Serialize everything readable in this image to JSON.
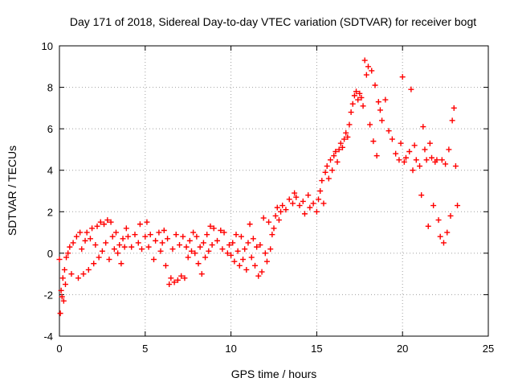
{
  "chart_data": {
    "type": "scatter",
    "title": "Day 171 of 2018, Sidereal Day-to-day VTEC variation (SDTVAR) for receiver bogt",
    "xlabel": "GPS time / hours",
    "ylabel": "SDTVAR / TECUs",
    "xlim": [
      0,
      25
    ],
    "ylim": [
      -4,
      10
    ],
    "xticks": [
      "0",
      "5",
      "10",
      "15",
      "20",
      "25"
    ],
    "yticks": [
      "-4",
      "-2",
      "0",
      "2",
      "4",
      "6",
      "8",
      "10"
    ],
    "grid": true,
    "marker": "+",
    "color": "#ff0000",
    "series": [
      {
        "name": "SDTVAR",
        "points": [
          [
            0.0,
            -0.3
          ],
          [
            0.05,
            -2.9
          ],
          [
            0.1,
            -1.8
          ],
          [
            0.15,
            -2.1
          ],
          [
            0.2,
            -1.2
          ],
          [
            0.25,
            -2.3
          ],
          [
            0.3,
            -0.8
          ],
          [
            0.35,
            -1.5
          ],
          [
            0.4,
            -0.2
          ],
          [
            0.5,
            0.0
          ],
          [
            0.6,
            0.3
          ],
          [
            0.7,
            -1.0
          ],
          [
            0.8,
            0.5
          ],
          [
            1.0,
            0.8
          ],
          [
            1.1,
            -1.2
          ],
          [
            1.2,
            1.0
          ],
          [
            1.3,
            0.2
          ],
          [
            1.4,
            -1.0
          ],
          [
            1.5,
            0.6
          ],
          [
            1.6,
            1.0
          ],
          [
            1.7,
            -0.8
          ],
          [
            1.8,
            0.7
          ],
          [
            1.9,
            1.2
          ],
          [
            2.0,
            -0.5
          ],
          [
            2.1,
            0.4
          ],
          [
            2.2,
            1.3
          ],
          [
            2.3,
            -0.2
          ],
          [
            2.4,
            1.5
          ],
          [
            2.5,
            0.1
          ],
          [
            2.6,
            1.4
          ],
          [
            2.7,
            0.5
          ],
          [
            2.8,
            1.6
          ],
          [
            2.9,
            -0.3
          ],
          [
            3.0,
            1.5
          ],
          [
            3.1,
            0.8
          ],
          [
            3.2,
            0.2
          ],
          [
            3.3,
            1.0
          ],
          [
            3.4,
            0.0
          ],
          [
            3.5,
            0.4
          ],
          [
            3.6,
            -0.5
          ],
          [
            3.7,
            0.7
          ],
          [
            3.8,
            0.3
          ],
          [
            3.9,
            1.2
          ],
          [
            4.0,
            0.8
          ],
          [
            4.2,
            0.3
          ],
          [
            4.4,
            0.9
          ],
          [
            4.6,
            0.5
          ],
          [
            4.7,
            1.4
          ],
          [
            4.8,
            0.2
          ],
          [
            5.0,
            0.8
          ],
          [
            5.1,
            1.5
          ],
          [
            5.2,
            0.3
          ],
          [
            5.3,
            0.9
          ],
          [
            5.5,
            -0.3
          ],
          [
            5.6,
            0.6
          ],
          [
            5.8,
            1.0
          ],
          [
            5.9,
            0.1
          ],
          [
            6.0,
            0.5
          ],
          [
            6.1,
            1.1
          ],
          [
            6.2,
            -0.6
          ],
          [
            6.3,
            0.7
          ],
          [
            6.4,
            -1.5
          ],
          [
            6.5,
            -1.2
          ],
          [
            6.6,
            0.2
          ],
          [
            6.7,
            -1.4
          ],
          [
            6.8,
            0.9
          ],
          [
            6.9,
            -1.3
          ],
          [
            7.0,
            0.4
          ],
          [
            7.1,
            -1.1
          ],
          [
            7.2,
            0.8
          ],
          [
            7.3,
            -1.2
          ],
          [
            7.4,
            0.3
          ],
          [
            7.5,
            -0.2
          ],
          [
            7.6,
            0.6
          ],
          [
            7.7,
            0.1
          ],
          [
            7.8,
            1.0
          ],
          [
            7.9,
            0.0
          ],
          [
            8.0,
            0.8
          ],
          [
            8.1,
            -0.5
          ],
          [
            8.2,
            0.3
          ],
          [
            8.3,
            -1.0
          ],
          [
            8.4,
            0.5
          ],
          [
            8.5,
            -0.2
          ],
          [
            8.6,
            0.9
          ],
          [
            8.7,
            0.1
          ],
          [
            8.8,
            1.3
          ],
          [
            8.9,
            0.4
          ],
          [
            9.0,
            1.2
          ],
          [
            9.2,
            0.6
          ],
          [
            9.4,
            1.1
          ],
          [
            9.5,
            0.2
          ],
          [
            9.6,
            1.0
          ],
          [
            9.8,
            0.0
          ],
          [
            9.9,
            0.4
          ],
          [
            10.0,
            -0.1
          ],
          [
            10.1,
            0.5
          ],
          [
            10.2,
            -0.4
          ],
          [
            10.3,
            0.9
          ],
          [
            10.4,
            0.1
          ],
          [
            10.5,
            -0.6
          ],
          [
            10.6,
            0.8
          ],
          [
            10.7,
            -0.3
          ],
          [
            10.8,
            0.2
          ],
          [
            10.9,
            -0.8
          ],
          [
            11.0,
            0.5
          ],
          [
            11.1,
            1.4
          ],
          [
            11.2,
            -0.2
          ],
          [
            11.3,
            0.7
          ],
          [
            11.4,
            -0.6
          ],
          [
            11.5,
            0.3
          ],
          [
            11.6,
            -1.1
          ],
          [
            11.7,
            0.4
          ],
          [
            11.8,
            -0.9
          ],
          [
            11.9,
            1.7
          ],
          [
            12.0,
            0.0
          ],
          [
            12.1,
            -0.4
          ],
          [
            12.2,
            1.5
          ],
          [
            12.3,
            0.2
          ],
          [
            12.4,
            0.9
          ],
          [
            12.5,
            1.2
          ],
          [
            12.6,
            1.8
          ],
          [
            12.7,
            2.2
          ],
          [
            12.8,
            1.6
          ],
          [
            12.9,
            2.0
          ],
          [
            13.0,
            2.3
          ],
          [
            13.2,
            2.1
          ],
          [
            13.4,
            2.6
          ],
          [
            13.6,
            2.4
          ],
          [
            13.7,
            2.9
          ],
          [
            13.8,
            2.7
          ],
          [
            14.0,
            2.3
          ],
          [
            14.2,
            2.5
          ],
          [
            14.3,
            1.9
          ],
          [
            14.5,
            2.8
          ],
          [
            14.6,
            2.2
          ],
          [
            14.8,
            2.4
          ],
          [
            15.0,
            2.0
          ],
          [
            15.1,
            2.6
          ],
          [
            15.2,
            3.0
          ],
          [
            15.3,
            3.5
          ],
          [
            15.4,
            2.4
          ],
          [
            15.5,
            3.9
          ],
          [
            15.6,
            4.2
          ],
          [
            15.7,
            3.6
          ],
          [
            15.8,
            4.5
          ],
          [
            15.9,
            4.0
          ],
          [
            16.0,
            4.7
          ],
          [
            16.1,
            4.9
          ],
          [
            16.2,
            4.4
          ],
          [
            16.3,
            5.0
          ],
          [
            16.4,
            5.3
          ],
          [
            16.5,
            5.1
          ],
          [
            16.6,
            5.5
          ],
          [
            16.7,
            5.8
          ],
          [
            16.8,
            5.6
          ],
          [
            16.9,
            6.2
          ],
          [
            17.0,
            6.8
          ],
          [
            17.1,
            7.2
          ],
          [
            17.2,
            7.6
          ],
          [
            17.3,
            7.8
          ],
          [
            17.4,
            7.4
          ],
          [
            17.5,
            7.7
          ],
          [
            17.6,
            7.5
          ],
          [
            17.7,
            7.1
          ],
          [
            17.8,
            9.3
          ],
          [
            17.9,
            8.6
          ],
          [
            18.0,
            9.0
          ],
          [
            18.1,
            6.2
          ],
          [
            18.2,
            8.8
          ],
          [
            18.3,
            5.4
          ],
          [
            18.4,
            8.1
          ],
          [
            18.5,
            4.7
          ],
          [
            18.6,
            7.3
          ],
          [
            18.7,
            6.9
          ],
          [
            18.8,
            6.4
          ],
          [
            19.0,
            7.4
          ],
          [
            19.2,
            5.9
          ],
          [
            19.4,
            5.5
          ],
          [
            19.6,
            4.8
          ],
          [
            19.8,
            4.5
          ],
          [
            19.9,
            5.3
          ],
          [
            20.0,
            8.5
          ],
          [
            20.1,
            4.4
          ],
          [
            20.2,
            4.6
          ],
          [
            20.4,
            4.9
          ],
          [
            20.5,
            7.9
          ],
          [
            20.6,
            4.0
          ],
          [
            20.7,
            5.2
          ],
          [
            20.8,
            4.5
          ],
          [
            21.0,
            4.2
          ],
          [
            21.1,
            2.8
          ],
          [
            21.2,
            6.1
          ],
          [
            21.3,
            5.0
          ],
          [
            21.4,
            4.5
          ],
          [
            21.5,
            1.3
          ],
          [
            21.6,
            5.3
          ],
          [
            21.7,
            4.6
          ],
          [
            21.8,
            2.3
          ],
          [
            21.9,
            4.4
          ],
          [
            22.0,
            4.5
          ],
          [
            22.1,
            1.6
          ],
          [
            22.2,
            0.8
          ],
          [
            22.3,
            4.5
          ],
          [
            22.4,
            0.5
          ],
          [
            22.5,
            4.3
          ],
          [
            22.6,
            1.0
          ],
          [
            22.7,
            5.0
          ],
          [
            22.8,
            1.8
          ],
          [
            22.9,
            6.4
          ],
          [
            23.0,
            7.0
          ],
          [
            23.1,
            4.2
          ],
          [
            23.2,
            2.3
          ]
        ]
      }
    ]
  }
}
